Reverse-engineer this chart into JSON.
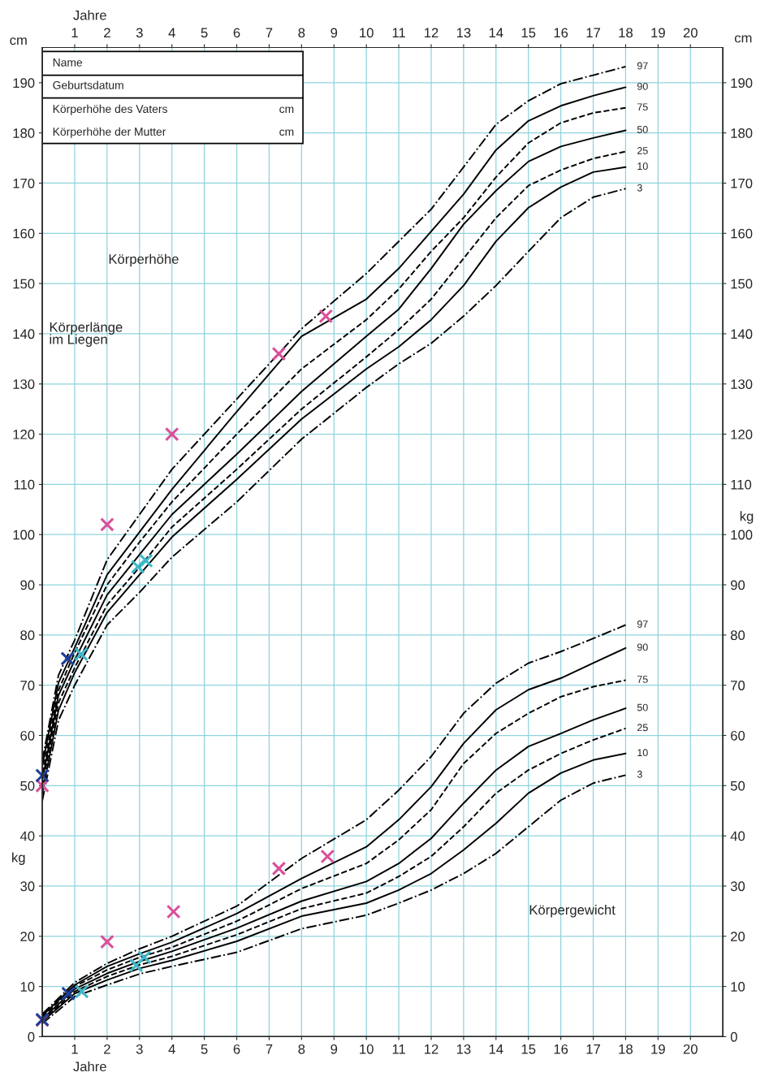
{
  "chart_data": {
    "type": "line",
    "xlabel": "Jahre",
    "x2label": "Jahre",
    "ylabel": "cm",
    "y2label": "cm",
    "xlim": [
      0,
      21
    ],
    "xticks": [
      1,
      2,
      3,
      4,
      5,
      6,
      7,
      8,
      9,
      10,
      11,
      12,
      13,
      14,
      15,
      16,
      17,
      18,
      19,
      20
    ],
    "x2lim": [
      0,
      21
    ],
    "x2ticks": [
      1,
      2,
      3,
      4,
      5,
      6,
      7,
      8,
      9,
      10,
      11,
      12,
      13,
      14,
      15,
      16,
      17,
      18,
      19,
      20
    ],
    "ylim": [
      0,
      197
    ],
    "yticks": [
      0,
      10,
      20,
      30,
      40,
      50,
      60,
      70,
      80,
      90,
      100,
      110,
      120,
      130,
      140,
      150,
      160,
      170,
      180,
      190
    ],
    "y2lim": [
      0,
      197
    ],
    "y2ticks": [
      0,
      10,
      20,
      30,
      40,
      50,
      60,
      70,
      80,
      90,
      100,
      110,
      120,
      130,
      140,
      150,
      160,
      170,
      180,
      190
    ],
    "grid": true,
    "legend": false,
    "annotations": [
      "Name",
      "Geburtsdatum",
      "Körperhöhe des Vaters",
      "cm",
      "Körperhöhe der Mutter",
      "cm",
      "Körperhöhe",
      "Körperlänge\nim Liegen",
      "Körpergewicht",
      "kg",
      "kg"
    ],
    "series": [
      {
        "name": "97",
        "color": "#000000",
        "line_style": "dashdot",
        "x": [
          0,
          0.5,
          1,
          2,
          3,
          4,
          6,
          8,
          10,
          11,
          12,
          13,
          14,
          15,
          16,
          17,
          18
        ],
        "values": [
          55,
          72,
          79,
          95,
          104,
          113,
          127,
          141,
          152,
          158.4,
          164.8,
          173.2,
          181.7,
          186.4,
          189.8,
          191.5,
          193.2
        ]
      },
      {
        "name": "90",
        "color": "#000000",
        "line_style": "solid",
        "x": [
          0,
          0.5,
          1,
          2,
          3,
          4,
          6,
          8,
          10,
          11,
          12,
          13,
          14,
          15,
          16,
          17,
          18
        ],
        "values": [
          54,
          70.5,
          77.5,
          92,
          100.5,
          109,
          124.5,
          139.5,
          146.9,
          153,
          160.4,
          167.8,
          176.6,
          182.4,
          185.4,
          187.4,
          189.1
        ]
      },
      {
        "name": "75",
        "color": "#000000",
        "line_style": "dashed",
        "x": [
          0,
          0.5,
          1,
          2,
          3,
          4,
          6,
          8,
          10,
          11,
          12,
          13,
          14,
          15,
          16,
          17,
          18
        ],
        "values": [
          52.5,
          69,
          76.5,
          90,
          98.5,
          106.5,
          120,
          133,
          142.8,
          148.9,
          156.4,
          163.1,
          171.2,
          178,
          182,
          184,
          185
        ]
      },
      {
        "name": "50",
        "color": "#000000",
        "line_style": "solid",
        "x": [
          0,
          0.5,
          1,
          2,
          3,
          4,
          6,
          8,
          10,
          11,
          12,
          13,
          14,
          15,
          16,
          17,
          18
        ],
        "values": [
          51,
          68,
          75,
          88,
          96,
          104,
          116,
          128.5,
          139.5,
          144.9,
          153,
          161.8,
          168.5,
          174.3,
          177.3,
          179,
          180.5
        ]
      },
      {
        "name": "25",
        "color": "#000000",
        "line_style": "dashed",
        "x": [
          0,
          0.5,
          1,
          2,
          3,
          4,
          6,
          8,
          10,
          11,
          12,
          13,
          14,
          15,
          16,
          17,
          18
        ],
        "values": [
          50,
          66.5,
          73.5,
          86,
          93.5,
          101.5,
          113,
          125,
          135.4,
          140.8,
          146.9,
          155,
          163.1,
          169.5,
          172.6,
          174.9,
          176.3
        ]
      },
      {
        "name": "10",
        "color": "#000000",
        "line_style": "solid",
        "x": [
          0,
          0.5,
          1,
          2,
          3,
          4,
          6,
          8,
          10,
          11,
          12,
          13,
          14,
          15,
          16,
          17,
          18
        ],
        "values": [
          48.5,
          65,
          72.5,
          84.5,
          92,
          99.5,
          111,
          123,
          133,
          137.4,
          142.8,
          149.6,
          158.4,
          165.1,
          169.2,
          172.2,
          173.2
        ]
      },
      {
        "name": "3",
        "color": "#000000",
        "line_style": "dashdot",
        "x": [
          0,
          0.5,
          1,
          2,
          3,
          4,
          6,
          8,
          10,
          11,
          12,
          13,
          14,
          15,
          16,
          17,
          18
        ],
        "values": [
          47,
          63,
          70,
          82,
          88.5,
          95.5,
          106.5,
          119,
          129.3,
          134,
          138.1,
          143.5,
          149.6,
          156.4,
          163.1,
          167.2,
          168.9
        ]
      },
      {
        "name": "97",
        "color": "#000000",
        "line_style": "dashdot",
        "x": [
          0,
          1,
          2,
          3,
          4,
          6,
          8,
          10,
          11,
          12,
          13,
          14,
          15,
          16,
          17,
          18
        ],
        "values": [
          4.5,
          10.8,
          14.6,
          17.5,
          20,
          26,
          35.5,
          43.2,
          49.1,
          55.8,
          64.4,
          70.4,
          74.4,
          76.7,
          79.3,
          82
        ]
      },
      {
        "name": "90",
        "color": "#000000",
        "line_style": "solid",
        "x": [
          0,
          1,
          2,
          3,
          4,
          6,
          8,
          10,
          11,
          12,
          13,
          14,
          15,
          16,
          17,
          18
        ],
        "values": [
          4.2,
          10.3,
          14,
          16.5,
          18.8,
          24.5,
          31.5,
          37.8,
          43.2,
          49.8,
          58.4,
          65.1,
          69.1,
          71.4,
          74.4,
          77.4
        ]
      },
      {
        "name": "75",
        "color": "#000000",
        "line_style": "dashed",
        "x": [
          0,
          1,
          2,
          3,
          4,
          6,
          8,
          10,
          11,
          12,
          13,
          14,
          15,
          16,
          17,
          18
        ],
        "values": [
          3.9,
          10,
          13.3,
          15.8,
          17.8,
          23,
          29.5,
          34.5,
          39.2,
          45.2,
          54.4,
          60.4,
          64.4,
          67.7,
          69.7,
          71
        ]
      },
      {
        "name": "50",
        "color": "#000000",
        "line_style": "solid",
        "x": [
          0,
          1,
          2,
          3,
          4,
          6,
          8,
          10,
          11,
          12,
          13,
          14,
          15,
          16,
          17,
          18
        ],
        "values": [
          3.5,
          9.5,
          12.6,
          15,
          17,
          21.6,
          27,
          30.9,
          34.5,
          39.5,
          46.5,
          53.1,
          57.8,
          60.4,
          63.1,
          65.4
        ]
      },
      {
        "name": "25",
        "color": "#000000",
        "line_style": "dashed",
        "x": [
          0,
          1,
          2,
          3,
          4,
          6,
          8,
          10,
          11,
          12,
          13,
          14,
          15,
          16,
          17,
          18
        ],
        "values": [
          3.2,
          9,
          12,
          14.3,
          16,
          20.3,
          25.5,
          28.6,
          31.9,
          35.9,
          41.8,
          48.5,
          53.1,
          56.4,
          59.1,
          61.4
        ]
      },
      {
        "name": "10",
        "color": "#000000",
        "line_style": "solid",
        "x": [
          0,
          1,
          2,
          3,
          4,
          6,
          8,
          10,
          11,
          12,
          13,
          14,
          15,
          16,
          17,
          18
        ],
        "values": [
          3,
          8.6,
          11.3,
          13.6,
          15.2,
          19,
          24,
          26.6,
          29.2,
          32.5,
          37.2,
          42.5,
          48.5,
          52.5,
          55.1,
          56.4
        ]
      },
      {
        "name": "3",
        "color": "#000000",
        "line_style": "dashdot",
        "x": [
          0,
          1,
          2,
          3,
          4,
          6,
          8,
          10,
          11,
          12,
          13,
          14,
          15,
          16,
          17,
          18
        ],
        "values": [
          2.6,
          8,
          10.3,
          12.5,
          14,
          16.8,
          21.5,
          24.2,
          26.6,
          29.2,
          32.5,
          36.5,
          41.8,
          47.1,
          50.5,
          52.1
        ]
      },
      {
        "type": "scatter",
        "marker": "cross",
        "color": "#d9509a",
        "x": [
          0,
          2,
          4,
          7.3,
          8.75
        ],
        "values": [
          50,
          102,
          120,
          136,
          143.5
        ]
      },
      {
        "type": "scatter",
        "marker": "cross",
        "color": "#3fb8c8",
        "x": [
          1.2,
          2.95,
          3.2
        ],
        "values": [
          76.2,
          93.6,
          94.8
        ]
      },
      {
        "type": "scatter",
        "marker": "cross",
        "color": "#1f3f9a",
        "x": [
          0,
          0.78
        ],
        "values": [
          52,
          75.3
        ]
      },
      {
        "type": "scatter",
        "marker": "cross",
        "color": "#d9509a",
        "x": [
          0,
          2,
          4.05,
          7.3,
          8.8
        ],
        "values": [
          3.3,
          18.9,
          24.9,
          33.5,
          35.9
        ]
      },
      {
        "type": "scatter",
        "marker": "cross",
        "color": "#3fb8c8",
        "x": [
          1.22,
          2.9,
          3.15
        ],
        "values": [
          9,
          14.2,
          15.8
        ]
      },
      {
        "type": "scatter",
        "marker": "cross",
        "color": "#1f3f9a",
        "x": [
          0,
          0.8
        ],
        "values": [
          3.4,
          8.6
        ]
      }
    ]
  }
}
